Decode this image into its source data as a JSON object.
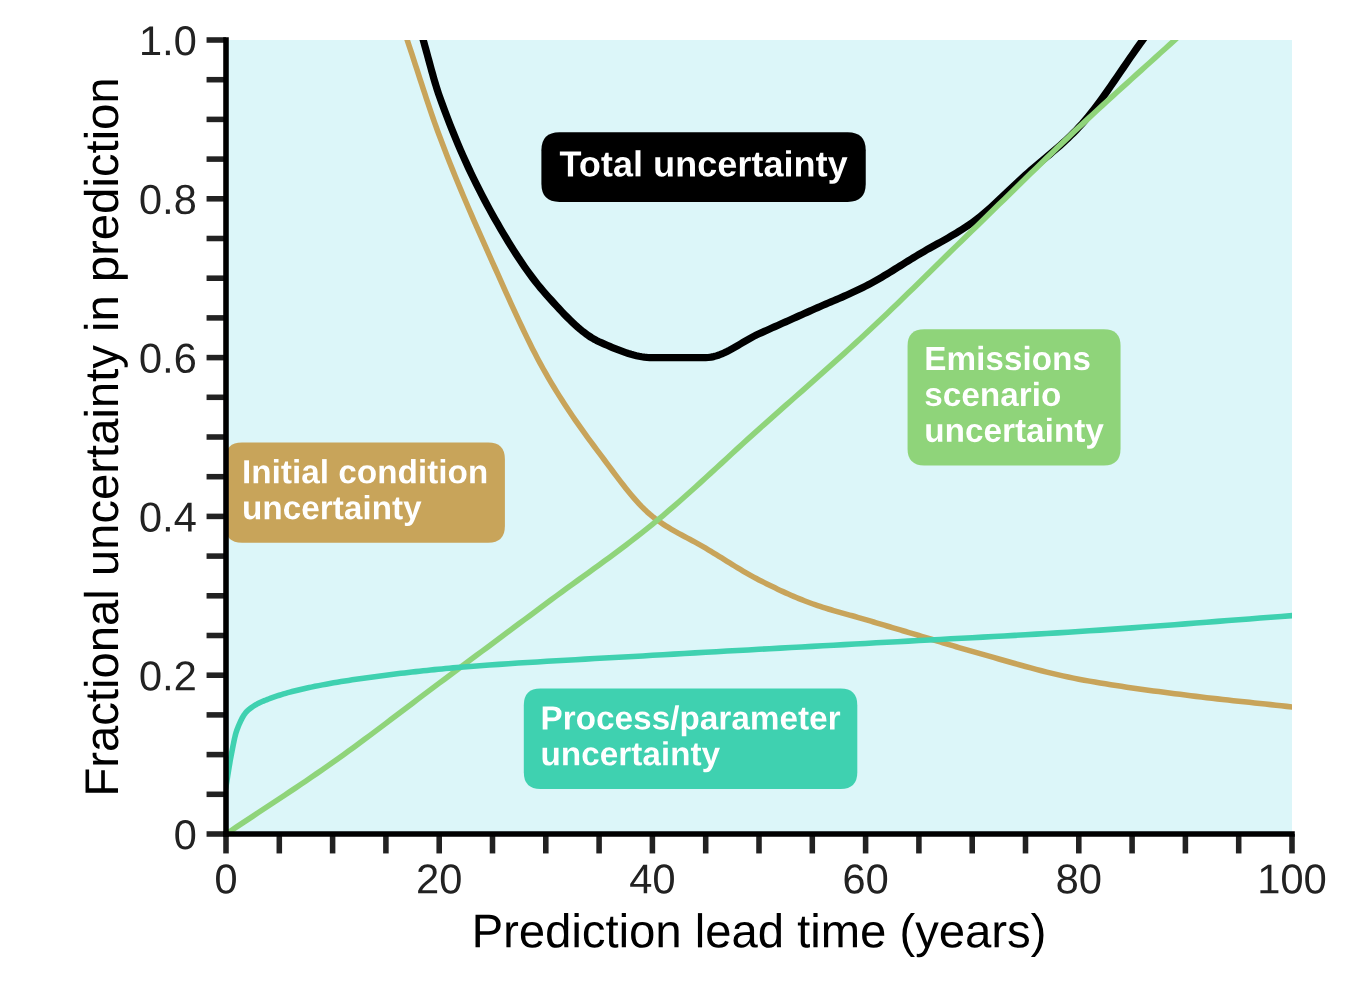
{
  "chart_data": {
    "type": "line",
    "xlabel": "Prediction lead time (years)",
    "ylabel": "Fractional uncertainty in prediction",
    "xlim": [
      0,
      100
    ],
    "ylim": [
      0,
      1
    ],
    "xticks": [
      0,
      {
        "value": 5,
        "label": null
      },
      {
        "value": 10,
        "label": null
      },
      {
        "value": 15,
        "label": null
      },
      20,
      {
        "value": 25,
        "label": null
      },
      {
        "value": 30,
        "label": null
      },
      {
        "value": 35,
        "label": null
      },
      40,
      {
        "value": 45,
        "label": null
      },
      {
        "value": 50,
        "label": null
      },
      {
        "value": 55,
        "label": null
      },
      60,
      {
        "value": 65,
        "label": null
      },
      {
        "value": 70,
        "label": null
      },
      {
        "value": 75,
        "label": null
      },
      80,
      {
        "value": 85,
        "label": null
      },
      {
        "value": 90,
        "label": null
      },
      {
        "value": 95,
        "label": null
      },
      100
    ],
    "yticks": [
      0,
      {
        "value": 0.05,
        "label": null
      },
      {
        "value": 0.1,
        "label": null
      },
      {
        "value": 0.15,
        "label": null
      },
      0.2,
      {
        "value": 0.25,
        "label": null
      },
      {
        "value": 0.3,
        "label": null
      },
      {
        "value": 0.35,
        "label": null
      },
      0.4,
      {
        "value": 0.45,
        "label": null
      },
      {
        "value": 0.5,
        "label": null
      },
      {
        "value": 0.55,
        "label": null
      },
      0.6,
      {
        "value": 0.65,
        "label": null
      },
      {
        "value": 0.7,
        "label": null
      },
      {
        "value": 0.75,
        "label": null
      },
      0.8,
      {
        "value": 0.85,
        "label": null
      },
      {
        "value": 0.9,
        "label": null
      },
      {
        "value": 0.95,
        "label": null
      },
      {
        "value": 1,
        "label": "1.0"
      }
    ],
    "grid": false,
    "legend": false,
    "marker": "none",
    "line_style": "solid",
    "series": [
      {
        "name": "Total uncertainty",
        "color": "#000000",
        "x": [
          18.5,
          20,
          25,
          30,
          35,
          40,
          45,
          50,
          55,
          60,
          65,
          70,
          75,
          80,
          86
        ],
        "values": [
          1.0,
          0.93,
          0.78,
          0.68,
          0.62,
          0.6,
          0.6,
          0.63,
          0.66,
          0.69,
          0.73,
          0.77,
          0.83,
          0.89,
          1.0
        ]
      },
      {
        "name": "Initial condition uncertainty",
        "color": "#c8a45a",
        "x": [
          17,
          20,
          25,
          30,
          35,
          40,
          45,
          50,
          55,
          60,
          65,
          70,
          80,
          90,
          100
        ],
        "values": [
          1.0,
          0.88,
          0.72,
          0.58,
          0.48,
          0.4,
          0.36,
          0.32,
          0.29,
          0.27,
          0.25,
          0.23,
          0.195,
          0.175,
          0.16
        ]
      },
      {
        "name": "Emissions scenario uncertainty",
        "color": "#8fd47a",
        "x": [
          0,
          10,
          20,
          30,
          40,
          50,
          60,
          70,
          80,
          89
        ],
        "values": [
          0,
          0.09,
          0.19,
          0.29,
          0.39,
          0.51,
          0.63,
          0.76,
          0.89,
          1.0
        ]
      },
      {
        "name": "Process/parameter uncertainty",
        "color": "#3fd1b0",
        "x": [
          0,
          0.5,
          1,
          2,
          4,
          8,
          15,
          22,
          40,
          60,
          80,
          100
        ],
        "values": [
          0.06,
          0.1,
          0.13,
          0.155,
          0.17,
          0.185,
          0.2,
          0.21,
          0.225,
          0.24,
          0.255,
          0.275
        ]
      }
    ]
  }
}
